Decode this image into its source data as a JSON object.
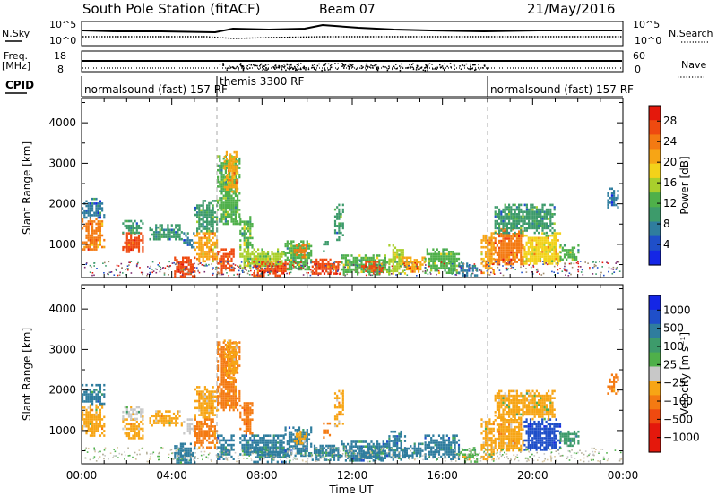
{
  "header": {
    "station": "South Pole Station (fitACF)",
    "beam": "Beam 07",
    "date": "21/May/2016"
  },
  "nsky": {
    "label": "N.Sky",
    "tick_top": "10^5",
    "tick_bottom": "10^0",
    "right_label": "N.Search",
    "right_tick_top": "10^5",
    "right_tick_bottom": "10^0"
  },
  "freq": {
    "label_line1": "Freq.",
    "label_line2": "[MHz]",
    "tick_top": "18",
    "tick_bottom": "8",
    "right_label": "Nave",
    "right_tick_top": "60",
    "right_tick_bottom": "0"
  },
  "cpid": {
    "label": "CPID",
    "segments": [
      {
        "start_hour": 0,
        "text": "normalsound (fast) 157 RF"
      },
      {
        "start_hour": 6,
        "text": "themis 3300 RF"
      },
      {
        "start_hour": 18,
        "text": "normalsound (fast) 157 RF"
      }
    ]
  },
  "power_panel": {
    "ylabel": "Slant Range [km]",
    "colorbar_label": "Power [dB]",
    "colorbar_ticks": [
      "4",
      "8",
      "12",
      "16",
      "20",
      "24",
      "28"
    ]
  },
  "velocity_panel": {
    "ylabel": "Slant Range [km]",
    "colorbar_label": "Velocity [m s⁻¹]",
    "colorbar_ticks": [
      "1000",
      "500",
      "100",
      "25",
      "−25",
      "−100",
      "−500",
      "−1000"
    ]
  },
  "xaxis": {
    "label": "Time UT",
    "tick_labels": [
      "00:00",
      "04:00",
      "08:00",
      "12:00",
      "16:00",
      "20:00",
      "00:00"
    ]
  },
  "chart_data": [
    {
      "type": "heatmap",
      "title": "",
      "xlabel": "Time UT",
      "ylabel": "Slant Range [km]",
      "xlim_hours": [
        0,
        24
      ],
      "ylim": [
        180,
        4600
      ],
      "yticks": [
        1000,
        2000,
        3000,
        4000
      ],
      "colorbar": {
        "label": "Power [dB]",
        "range": [
          0,
          31
        ],
        "ticks": [
          4,
          8,
          12,
          16,
          20,
          24,
          28
        ],
        "colors": [
          "#1426e6",
          "#1f4fc9",
          "#2f7d9e",
          "#3d9b6b",
          "#4fb04a",
          "#a9cf2c",
          "#f3d21a",
          "#f7a515",
          "#f47a12",
          "#ef4a10",
          "#e4180c"
        ]
      },
      "dashed_vlines_hours": [
        6,
        18
      ],
      "regions": [
        {
          "t": [
            0.0,
            1.0
          ],
          "r": [
            900,
            1650
          ],
          "power": 24
        },
        {
          "t": [
            0.0,
            1.0
          ],
          "r": [
            1650,
            2150
          ],
          "power": 6
        },
        {
          "t": [
            1.8,
            2.7
          ],
          "r": [
            800,
            1300
          ],
          "power": 27
        },
        {
          "t": [
            1.8,
            2.7
          ],
          "r": [
            1300,
            1600
          ],
          "power": 10
        },
        {
          "t": [
            3.0,
            4.4
          ],
          "r": [
            1100,
            1500
          ],
          "power": 9
        },
        {
          "t": [
            4.5,
            5.0
          ],
          "r": [
            900,
            1300
          ],
          "power": 6
        },
        {
          "t": [
            4.1,
            5.0
          ],
          "r": [
            200,
            700
          ],
          "power": 27
        },
        {
          "t": [
            5.0,
            6.0
          ],
          "r": [
            600,
            1300
          ],
          "power": 20
        },
        {
          "t": [
            5.0,
            6.0
          ],
          "r": [
            1300,
            2100
          ],
          "power": 9
        },
        {
          "t": [
            6.0,
            6.7
          ],
          "r": [
            300,
            900
          ],
          "power": 26
        },
        {
          "t": [
            6.0,
            7.0
          ],
          "r": [
            1500,
            3200
          ],
          "power": 12
        },
        {
          "t": [
            6.3,
            6.9
          ],
          "r": [
            2300,
            3300
          ],
          "power": 20
        },
        {
          "t": [
            7.0,
            7.6
          ],
          "r": [
            900,
            1700
          ],
          "power": 14
        },
        {
          "t": [
            7.0,
            9.0
          ],
          "r": [
            400,
            900
          ],
          "power": 16
        },
        {
          "t": [
            7.6,
            9.2
          ],
          "r": [
            250,
            600
          ],
          "power": 28
        },
        {
          "t": [
            9.0,
            10.2
          ],
          "r": [
            400,
            1100
          ],
          "power": 13
        },
        {
          "t": [
            9.4,
            10.0
          ],
          "r": [
            700,
            1000
          ],
          "power": 23
        },
        {
          "t": [
            10.2,
            11.5
          ],
          "r": [
            300,
            650
          ],
          "power": 27
        },
        {
          "t": [
            10.7,
            11.0
          ],
          "r": [
            800,
            1200
          ],
          "power": 10
        },
        {
          "t": [
            11.2,
            11.6
          ],
          "r": [
            1100,
            2000
          ],
          "power": 10
        },
        {
          "t": [
            11.5,
            13.6
          ],
          "r": [
            250,
            750
          ],
          "power": 14
        },
        {
          "t": [
            12.3,
            13.3
          ],
          "r": [
            300,
            600
          ],
          "power": 26
        },
        {
          "t": [
            13.6,
            14.3
          ],
          "r": [
            300,
            1000
          ],
          "power": 16
        },
        {
          "t": [
            14.2,
            15.2
          ],
          "r": [
            300,
            700
          ],
          "power": 22
        },
        {
          "t": [
            15.2,
            16.7
          ],
          "r": [
            300,
            900
          ],
          "power": 14
        },
        {
          "t": [
            16.7,
            17.5
          ],
          "r": [
            250,
            550
          ],
          "power": 6
        },
        {
          "t": [
            17.7,
            18.3
          ],
          "r": [
            300,
            1300
          ],
          "power": 22
        },
        {
          "t": [
            18.3,
            19.6
          ],
          "r": [
            500,
            1400
          ],
          "power": 24
        },
        {
          "t": [
            19.6,
            21.2
          ],
          "r": [
            500,
            1300
          ],
          "power": 19
        },
        {
          "t": [
            18.3,
            21.0
          ],
          "r": [
            1300,
            2000
          ],
          "power": 10
        },
        {
          "t": [
            21.2,
            22.0
          ],
          "r": [
            600,
            1000
          ],
          "power": 12
        },
        {
          "t": [
            23.3,
            23.8
          ],
          "r": [
            1900,
            2400
          ],
          "power": 6
        }
      ]
    },
    {
      "type": "heatmap",
      "title": "",
      "xlabel": "Time UT",
      "ylabel": "Slant Range [km]",
      "xlim_hours": [
        0,
        24
      ],
      "ylim": [
        180,
        4600
      ],
      "yticks": [
        1000,
        2000,
        3000,
        4000
      ],
      "colorbar": {
        "label": "Velocity [m s⁻¹]",
        "ticks": [
          1000,
          500,
          100,
          25,
          -25,
          -100,
          -500,
          -1000
        ],
        "colors": [
          "#e4180c",
          "#ef4a10",
          "#f47a12",
          "#f7a515",
          "#c8c8c8",
          "#c8c8c8",
          "#4fb04a",
          "#3d9b6b",
          "#2f7d9e",
          "#1f4fc9",
          "#1426e6"
        ]
      },
      "dashed_vlines_hours": [
        6,
        18
      ],
      "regions": [
        {
          "t": [
            0.0,
            1.0
          ],
          "r": [
            900,
            1650
          ],
          "velocity": -150
        },
        {
          "t": [
            0.0,
            1.0
          ],
          "r": [
            1650,
            2150
          ],
          "velocity": 120
        },
        {
          "t": [
            1.8,
            2.7
          ],
          "r": [
            800,
            1300
          ],
          "velocity": -200
        },
        {
          "t": [
            1.8,
            2.7
          ],
          "r": [
            1300,
            1600
          ],
          "velocity": -80
        },
        {
          "t": [
            3.0,
            4.4
          ],
          "r": [
            1100,
            1500
          ],
          "velocity": -120
        },
        {
          "t": [
            4.5,
            5.0
          ],
          "r": [
            900,
            1300
          ],
          "velocity": -60
        },
        {
          "t": [
            4.1,
            5.0
          ],
          "r": [
            200,
            700
          ],
          "velocity": 150
        },
        {
          "t": [
            5.0,
            6.0
          ],
          "r": [
            600,
            1300
          ],
          "velocity": -250
        },
        {
          "t": [
            5.0,
            6.0
          ],
          "r": [
            1300,
            2100
          ],
          "velocity": -150
        },
        {
          "t": [
            6.0,
            6.7
          ],
          "r": [
            300,
            900
          ],
          "velocity": 200
        },
        {
          "t": [
            6.0,
            7.0
          ],
          "r": [
            1500,
            3200
          ],
          "velocity": -300
        },
        {
          "t": [
            6.3,
            6.9
          ],
          "r": [
            2300,
            3300
          ],
          "velocity": -200
        },
        {
          "t": [
            7.0,
            7.6
          ],
          "r": [
            900,
            1700
          ],
          "velocity": -400
        },
        {
          "t": [
            7.0,
            9.0
          ],
          "r": [
            400,
            900
          ],
          "velocity": 150
        },
        {
          "t": [
            7.6,
            9.2
          ],
          "r": [
            250,
            600
          ],
          "velocity": 120
        },
        {
          "t": [
            9.0,
            10.2
          ],
          "r": [
            400,
            1100
          ],
          "velocity": 180
        },
        {
          "t": [
            9.4,
            10.0
          ],
          "r": [
            700,
            1000
          ],
          "velocity": -150
        },
        {
          "t": [
            10.2,
            11.5
          ],
          "r": [
            300,
            650
          ],
          "velocity": 130
        },
        {
          "t": [
            10.7,
            11.0
          ],
          "r": [
            800,
            1200
          ],
          "velocity": -350
        },
        {
          "t": [
            11.2,
            11.6
          ],
          "r": [
            1100,
            2000
          ],
          "velocity": -200
        },
        {
          "t": [
            11.5,
            13.6
          ],
          "r": [
            250,
            750
          ],
          "velocity": 150
        },
        {
          "t": [
            12.3,
            13.3
          ],
          "r": [
            300,
            600
          ],
          "velocity": 110
        },
        {
          "t": [
            13.6,
            14.3
          ],
          "r": [
            300,
            1000
          ],
          "velocity": 170
        },
        {
          "t": [
            14.2,
            15.2
          ],
          "r": [
            300,
            700
          ],
          "velocity": 140
        },
        {
          "t": [
            15.2,
            16.7
          ],
          "r": [
            300,
            900
          ],
          "velocity": 160
        },
        {
          "t": [
            16.7,
            17.5
          ],
          "r": [
            250,
            550
          ],
          "velocity": 20
        },
        {
          "t": [
            17.7,
            18.3
          ],
          "r": [
            300,
            1300
          ],
          "velocity": -120
        },
        {
          "t": [
            18.3,
            19.6
          ],
          "r": [
            500,
            1400
          ],
          "velocity": -200
        },
        {
          "t": [
            19.6,
            21.2
          ],
          "r": [
            500,
            1300
          ],
          "velocity": 400
        },
        {
          "t": [
            18.3,
            21.0
          ],
          "r": [
            1300,
            2000
          ],
          "velocity": -100
        },
        {
          "t": [
            21.2,
            22.0
          ],
          "r": [
            600,
            1000
          ],
          "velocity": 60
        },
        {
          "t": [
            23.3,
            23.8
          ],
          "r": [
            1900,
            2400
          ],
          "velocity": -300
        }
      ]
    }
  ]
}
